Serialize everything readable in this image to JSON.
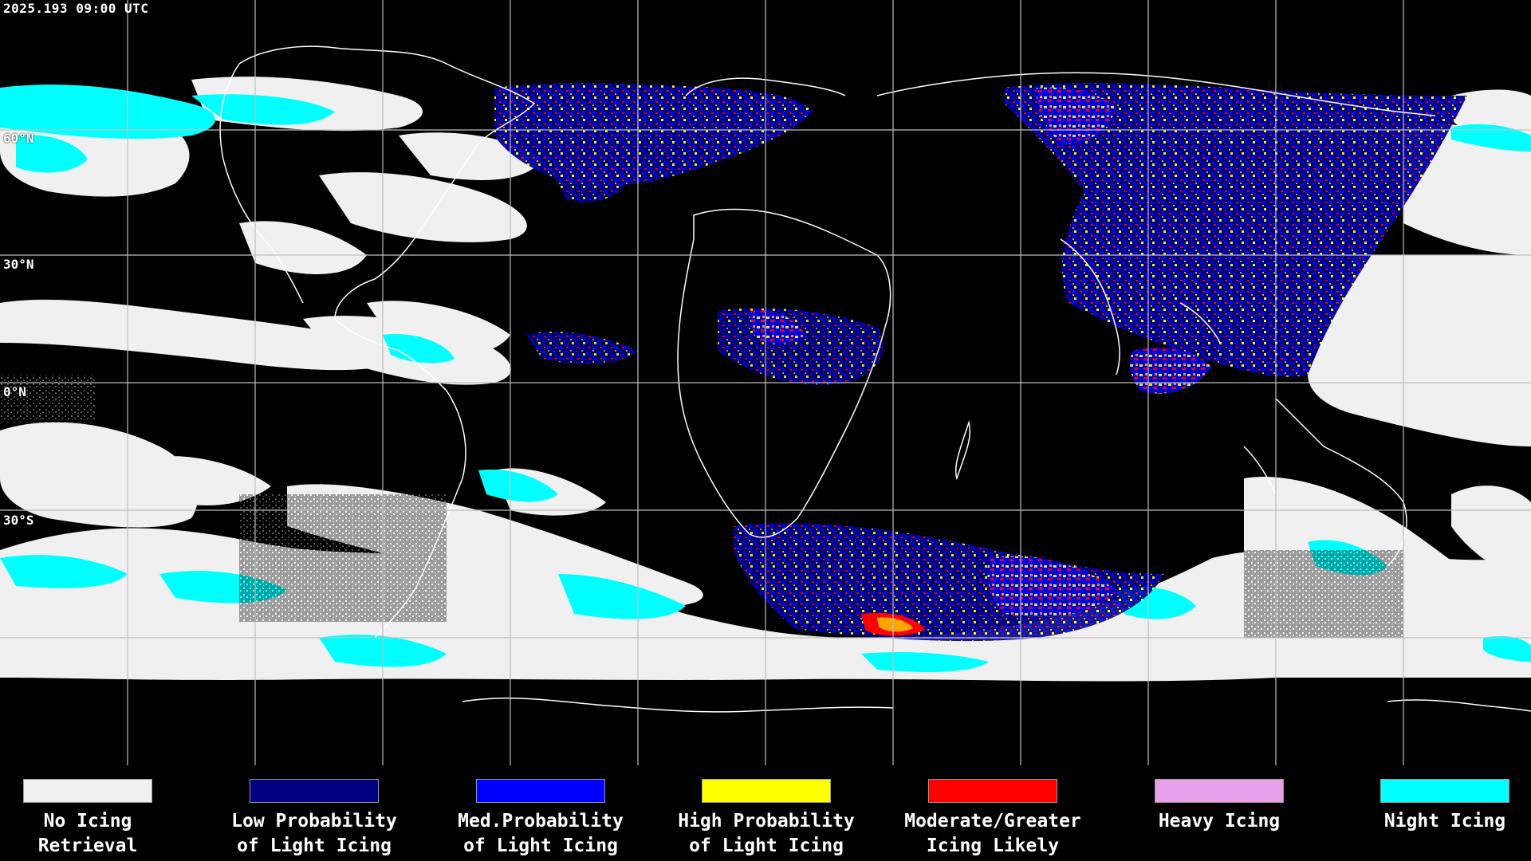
{
  "timestamp": "2025.193 09:00 UTC",
  "latitude_labels": [
    "60°N",
    "30°N",
    "0°N",
    "30°S"
  ],
  "legend": [
    {
      "line1": "No Icing",
      "line2": "Retrieval",
      "color": "#f0f0f0"
    },
    {
      "line1": "Low Probability",
      "line2": "of Light Icing",
      "color": "#000080"
    },
    {
      "line1": "Med.Probability",
      "line2": "of Light Icing",
      "color": "#0000ff"
    },
    {
      "line1": "High Probability",
      "line2": "of Light Icing",
      "color": "#ffff00"
    },
    {
      "line1": "Moderate/Greater",
      "line2": "Icing Likely",
      "color": "#ff0000"
    },
    {
      "line1": "Heavy Icing",
      "line2": "",
      "color": "#e8a0e8"
    },
    {
      "line1": "Night Icing",
      "line2": "",
      "color": "#00ffff"
    }
  ]
}
